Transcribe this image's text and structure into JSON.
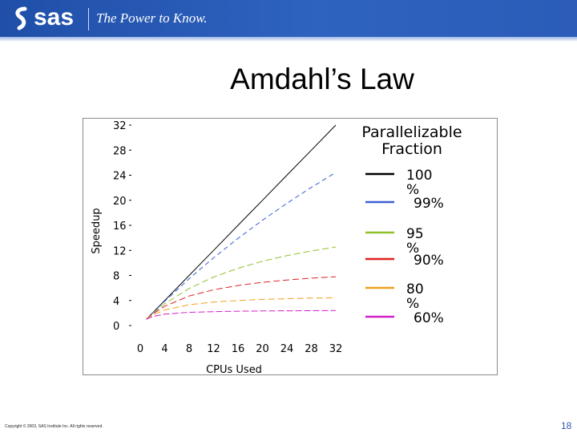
{
  "header": {
    "logo_text": "sas",
    "tagline": "The Power to Know.",
    "brand_color": "#1f4fa8"
  },
  "slide": {
    "title": "Amdahl’s Law",
    "copyright": "Copyright © 2003, SAS Institute Inc. All rights reserved.",
    "page_number": "18"
  },
  "chart_data": {
    "type": "line",
    "xlabel": "CPUs Used",
    "ylabel": "Speedup",
    "xlim": [
      0,
      32
    ],
    "ylim": [
      0,
      32
    ],
    "x_ticks": [
      "0",
      "4",
      "8",
      "12",
      "16",
      "20",
      "24",
      "28",
      "32"
    ],
    "y_ticks": [
      "0",
      "4",
      "8",
      "12",
      "16",
      "20",
      "24",
      "28",
      "32"
    ],
    "legend_title": "Parallelizable Fraction",
    "legend_position": "right",
    "grid": false,
    "x": [
      1,
      2,
      4,
      8,
      12,
      16,
      20,
      24,
      28,
      32
    ],
    "series": [
      {
        "name": "100 %",
        "color": "#000000",
        "dash": "solid",
        "values": [
          1,
          2,
          4,
          8,
          12,
          16,
          20,
          24,
          28,
          32
        ]
      },
      {
        "name": "99%",
        "color": "#3a5fd0",
        "dash": "6 4",
        "values": [
          1,
          1.98,
          3.88,
          7.48,
          10.81,
          13.91,
          16.81,
          19.51,
          22.05,
          24.43
        ]
      },
      {
        "name": "95 %",
        "color": "#8fbf2a",
        "dash": "8 4",
        "values": [
          1,
          1.9,
          3.48,
          5.93,
          7.74,
          9.14,
          10.26,
          11.16,
          11.91,
          12.55
        ]
      },
      {
        "name": "90%",
        "color": "#e02020",
        "dash": "8 4",
        "values": [
          1,
          1.82,
          3.08,
          4.71,
          5.71,
          6.4,
          6.9,
          7.27,
          7.57,
          7.8
        ]
      },
      {
        "name": "80 %",
        "color": "#f0a020",
        "dash": "8 4",
        "values": [
          1,
          1.67,
          2.5,
          3.33,
          3.75,
          4.0,
          4.17,
          4.29,
          4.38,
          4.44
        ]
      },
      {
        "name": "60%",
        "color": "#d020c8",
        "dash": "8 3",
        "values": [
          1,
          1.43,
          1.82,
          2.11,
          2.22,
          2.29,
          2.33,
          2.35,
          2.37,
          2.39
        ]
      }
    ]
  }
}
